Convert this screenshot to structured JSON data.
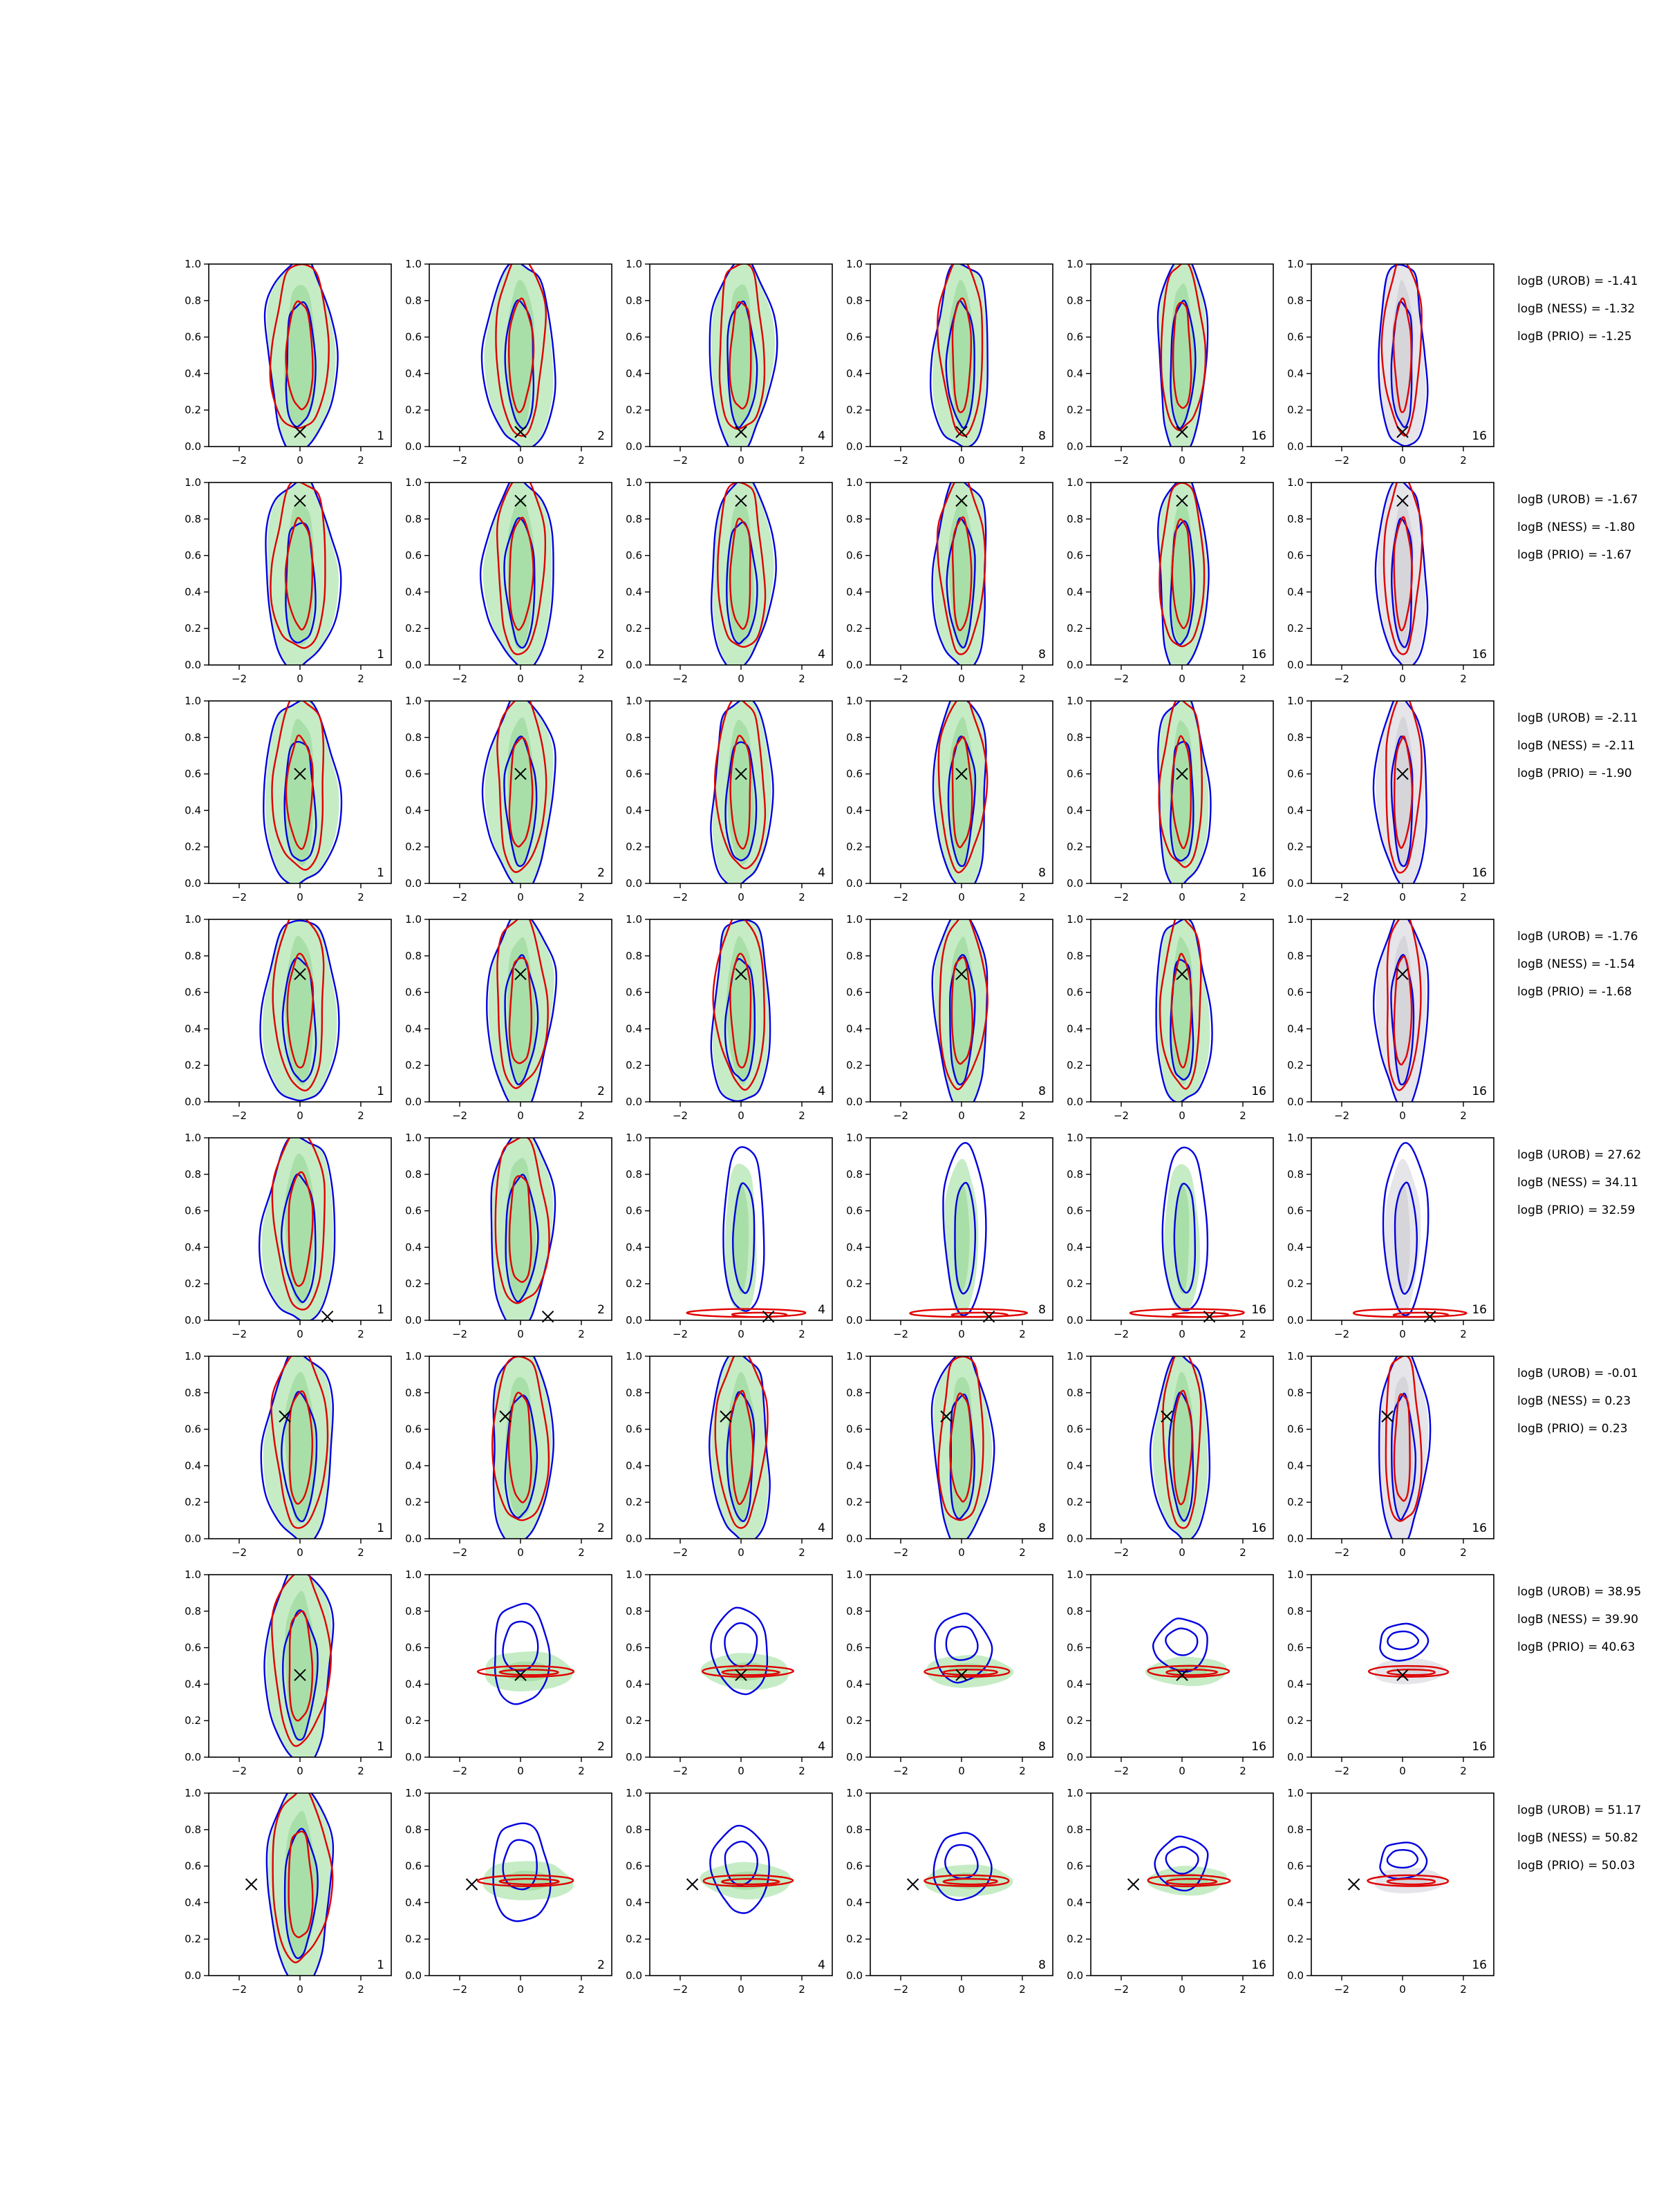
{
  "chart_data": {
    "type": "contour-grid",
    "rows": 8,
    "cols": 6,
    "xlim": [
      -3,
      3
    ],
    "ylim": [
      0,
      1
    ],
    "x_ticks": [
      -2,
      0,
      2
    ],
    "y_ticks": [
      0.0,
      0.2,
      0.4,
      0.6,
      0.8,
      1.0
    ],
    "x_tick_labels": [
      "−2",
      "0",
      "2"
    ],
    "y_tick_labels": [
      "0.0",
      "0.2",
      "0.4",
      "0.6",
      "0.8",
      "1.0"
    ],
    "colors": {
      "green_fill": "#c6ecc6",
      "green_inner": "#a8dfa8",
      "gray_fill": "#e5e5ea",
      "gray_inner": "#d5d5da",
      "blue": "#0000e0",
      "red": "#e00000",
      "marker": "#000000"
    },
    "col_labels": [
      "1",
      "2",
      "4",
      "8",
      "16",
      "16"
    ],
    "col_background": [
      "green",
      "green",
      "green",
      "green",
      "green",
      "gray"
    ],
    "row_data": [
      {
        "marker": [
          0,
          0.08
        ],
        "profile": "top-blobs",
        "logB": [
          "logB (UROB) = -1.41",
          "logB (NESS) = -1.32",
          "logB (PRIO) = -1.25"
        ]
      },
      {
        "marker": [
          0,
          0.9
        ],
        "profile": "column",
        "logB": [
          "logB (UROB) = -1.67",
          "logB (NESS) = -1.80",
          "logB (PRIO) = -1.67"
        ]
      },
      {
        "marker": [
          0,
          0.6
        ],
        "profile": "column",
        "logB": [
          "logB (UROB) = -2.11",
          "logB (NESS) = -2.11",
          "logB (PRIO) = -1.90"
        ]
      },
      {
        "marker": [
          0,
          0.7
        ],
        "profile": "column",
        "logB": [
          "logB (UROB) = -1.76",
          "logB (NESS) = -1.54",
          "logB (PRIO) = -1.68"
        ]
      },
      {
        "marker": [
          0.9,
          0.02
        ],
        "profile": "bottom-flat",
        "logB": [
          "logB (UROB) = 27.62",
          "logB (NESS) = 34.11",
          "logB (PRIO) = 32.59"
        ]
      },
      {
        "marker": [
          -0.5,
          0.67
        ],
        "profile": "column",
        "logB": [
          "logB (UROB) = -0.01",
          "logB (NESS) = 0.23",
          "logB (PRIO) = 0.23"
        ]
      },
      {
        "marker": [
          0,
          0.45
        ],
        "profile": "mid-flat",
        "logB": [
          "logB (UROB) = 38.95",
          "logB (NESS) = 39.90",
          "logB (PRIO) = 40.63"
        ]
      },
      {
        "marker": [
          -1.6,
          0.5
        ],
        "profile": "mid-flat",
        "logB": [
          "logB (UROB) = 51.17",
          "logB (NESS) = 50.82",
          "logB (PRIO) = 50.03"
        ]
      }
    ]
  }
}
